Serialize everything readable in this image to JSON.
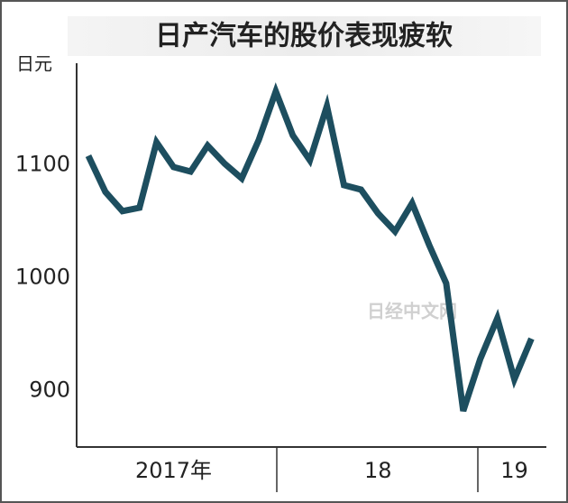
{
  "chart_data": {
    "type": "line",
    "title": "日产汽车的股价表现疲软",
    "y_label": "日元",
    "watermark": "日经中文网",
    "categories": [
      null,
      null,
      null,
      null,
      null,
      "2017年",
      null,
      null,
      null,
      null,
      null,
      null,
      null,
      null,
      null,
      null,
      null,
      "18",
      null,
      null,
      null,
      null,
      null,
      null,
      null,
      "19",
      null
    ],
    "values": [
      1108,
      1076,
      1059,
      1062,
      1120,
      1098,
      1094,
      1117,
      1101,
      1088,
      1122,
      1165,
      1126,
      1104,
      1152,
      1082,
      1078,
      1057,
      1041,
      1066,
      1029,
      995,
      882,
      928,
      964,
      910,
      946
    ],
    "color": "#1d4e5f",
    "ylim": [
      850,
      1190
    ],
    "yticks": [
      900,
      1000,
      1100
    ],
    "grid": false
  }
}
